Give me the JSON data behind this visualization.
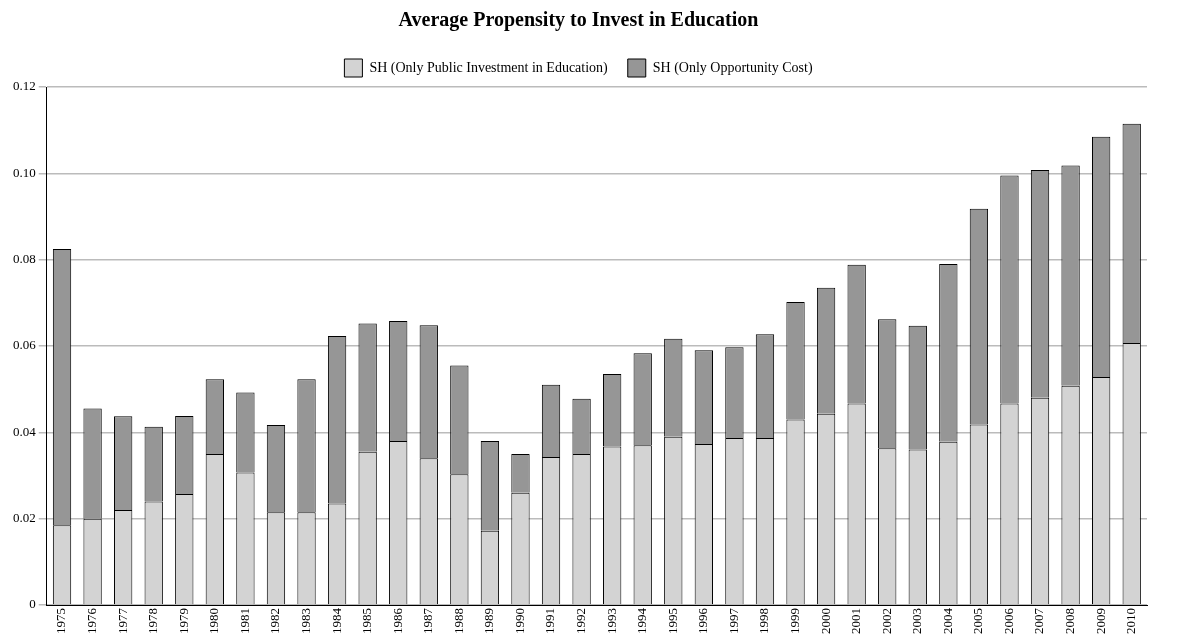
{
  "chart_data": {
    "type": "bar",
    "title": "Average Propensity to Invest in Education",
    "stacked": true,
    "grid": "y",
    "legend": "top",
    "categories": [
      "1975",
      "1976",
      "1977",
      "1978",
      "1979",
      "1980",
      "1981",
      "1982",
      "1983",
      "1984",
      "1985",
      "1986",
      "1987",
      "1988",
      "1989",
      "1990",
      "1991",
      "1992",
      "1993",
      "1994",
      "1995",
      "1996",
      "1997",
      "1998",
      "1999",
      "2000",
      "2001",
      "2002",
      "2003",
      "2004",
      "2005",
      "2006",
      "2007",
      "2008",
      "2009",
      "2010"
    ],
    "series": [
      {
        "name": "SH (Only Public Investment in Education)",
        "color": "#d3d3d3",
        "values": [
          0.0185,
          0.02,
          0.022,
          0.024,
          0.0257,
          0.035,
          0.0307,
          0.0215,
          0.0215,
          0.0235,
          0.0355,
          0.038,
          0.034,
          0.0303,
          0.0172,
          0.026,
          0.0343,
          0.035,
          0.0367,
          0.037,
          0.039,
          0.0373,
          0.0387,
          0.0387,
          0.043,
          0.0443,
          0.0467,
          0.0363,
          0.036,
          0.0378,
          0.0418,
          0.0467,
          0.048,
          0.0508,
          0.0528,
          0.0607
        ]
      },
      {
        "name": "SH (Only Opportunity Cost)",
        "color": "#969696",
        "values": [
          0.064,
          0.0255,
          0.0217,
          0.0173,
          0.0181,
          0.0173,
          0.0185,
          0.0202,
          0.0308,
          0.0388,
          0.0297,
          0.0278,
          0.0308,
          0.0252,
          0.0208,
          0.009,
          0.0167,
          0.0128,
          0.0168,
          0.0213,
          0.0227,
          0.0217,
          0.021,
          0.024,
          0.0272,
          0.0292,
          0.0321,
          0.0299,
          0.0287,
          0.0412,
          0.05,
          0.0528,
          0.0528,
          0.051,
          0.0557,
          0.0508
        ]
      }
    ],
    "ylim": [
      0,
      0.12
    ],
    "yticks": [
      0,
      0.02,
      0.04,
      0.06,
      0.08,
      {
        "value": 0.1,
        "label": "0.10"
      },
      0.12
    ]
  }
}
